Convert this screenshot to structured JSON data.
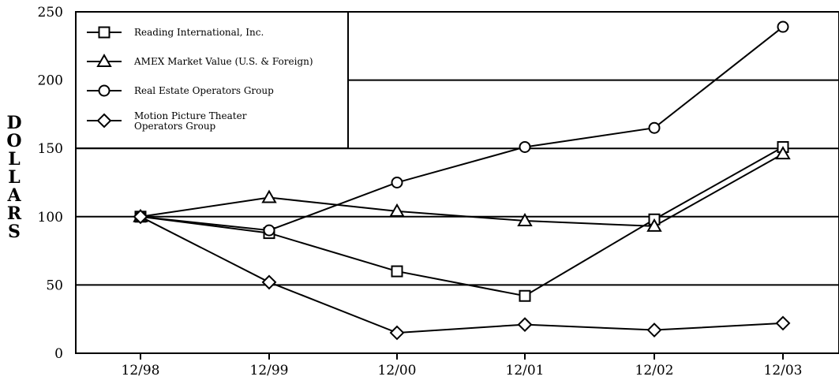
{
  "chart_data": {
    "type": "line",
    "title": "",
    "xlabel": "",
    "ylabel": "DOLLARS",
    "ylim": [
      0,
      250
    ],
    "yticks": [
      0,
      50,
      100,
      150,
      200,
      250
    ],
    "categories": [
      "12/98",
      "12/99",
      "12/00",
      "12/01",
      "12/02",
      "12/03"
    ],
    "grid": "horizontal",
    "legend": "top-left",
    "series": [
      {
        "name": "Reading International, Inc.",
        "marker": "square",
        "values": [
          100,
          88,
          60,
          42,
          98,
          151
        ]
      },
      {
        "name": "AMEX Market Value (U.S. & Foreign)",
        "marker": "triangle",
        "values": [
          100,
          114,
          104,
          97,
          93,
          146
        ]
      },
      {
        "name": "Real Estate Operators Group",
        "marker": "circle",
        "values": [
          100,
          90,
          125,
          151,
          165,
          239
        ]
      },
      {
        "name": "Motion Picture Theater Operators Group",
        "name_lines": [
          "Motion Picture Theater",
          "Operators Group"
        ],
        "marker": "diamond",
        "values": [
          100,
          52,
          15,
          21,
          17,
          22
        ]
      }
    ]
  }
}
